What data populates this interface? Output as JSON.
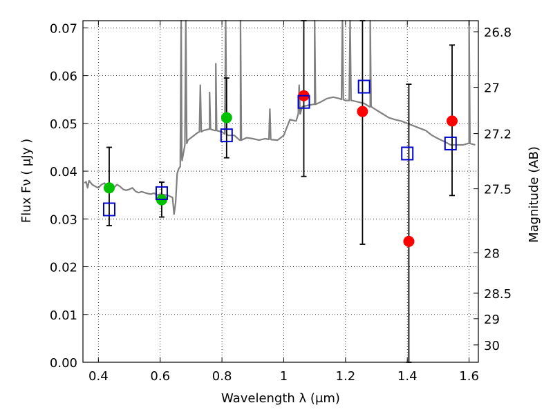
{
  "chart_data": {
    "type": "scatter",
    "xlabel": "Wavelength  λ (μm)",
    "ylabel": "Flux  Fν  ( μJy )",
    "y2label": "Magnitude (AB)",
    "xlim": [
      0.35,
      1.63
    ],
    "ylim": [
      0.0,
      0.0715
    ],
    "grid": true,
    "x_ticks": [
      0.4,
      0.6,
      0.8,
      1.0,
      1.2,
      1.4,
      1.6
    ],
    "x_tick_labels": [
      "0.4",
      "0.6",
      "0.8",
      "1",
      "1.2",
      "1.4",
      "1.6"
    ],
    "y_ticks": [
      0.0,
      0.01,
      0.02,
      0.03,
      0.04,
      0.05,
      0.06,
      0.07
    ],
    "y_tick_labels": [
      "0.00",
      "0.01",
      "0.02",
      "0.03",
      "0.04",
      "0.05",
      "0.06",
      "0.07"
    ],
    "y2_ticks": [
      26.8,
      27.0,
      27.2,
      27.5,
      28.0,
      28.5,
      29.0,
      30.0
    ],
    "y2_tick_labels": [
      "26.8",
      "27",
      "27.2",
      "27.5",
      "28",
      "28.5",
      "29",
      "30"
    ],
    "colors": {
      "model": "#808080",
      "optical": "#00c000",
      "infrared": "#ff0000",
      "model_photometry": "#0000cc",
      "errorbar": "#000000"
    },
    "model_spectrum": {
      "x": [
        0.355,
        0.36,
        0.365,
        0.37,
        0.38,
        0.39,
        0.4,
        0.41,
        0.42,
        0.43,
        0.44,
        0.45,
        0.46,
        0.47,
        0.48,
        0.49,
        0.5,
        0.51,
        0.52,
        0.53,
        0.54,
        0.55,
        0.56,
        0.57,
        0.58,
        0.59,
        0.6,
        0.61,
        0.62,
        0.63,
        0.64,
        0.645,
        0.65,
        0.655,
        0.66,
        0.665,
        0.67,
        0.68,
        0.69,
        0.7,
        0.72,
        0.74,
        0.76,
        0.78,
        0.8,
        0.82,
        0.84,
        0.86,
        0.88,
        0.9,
        0.92,
        0.94,
        0.96,
        0.98,
        1.0,
        1.02,
        1.04,
        1.06,
        1.08,
        1.1,
        1.12,
        1.14,
        1.16,
        1.18,
        1.2,
        1.22,
        1.24,
        1.26,
        1.28,
        1.3,
        1.32,
        1.34,
        1.36,
        1.38,
        1.4,
        1.42,
        1.44,
        1.46,
        1.48,
        1.5,
        1.52,
        1.54,
        1.56,
        1.58,
        1.6,
        1.62
      ],
      "y": [
        0.0375,
        0.0378,
        0.0365,
        0.038,
        0.0372,
        0.0368,
        0.0365,
        0.0372,
        0.0375,
        0.0362,
        0.0368,
        0.0365,
        0.0372,
        0.0368,
        0.0362,
        0.036,
        0.0362,
        0.0365,
        0.0358,
        0.0355,
        0.0357,
        0.0355,
        0.0353,
        0.0352,
        0.0354,
        0.035,
        0.0352,
        0.0351,
        0.035,
        0.0348,
        0.0345,
        0.031,
        0.0335,
        0.0395,
        0.0405,
        0.041,
        0.043,
        0.0455,
        0.0465,
        0.047,
        0.048,
        0.0485,
        0.0488,
        0.0485,
        0.0482,
        0.0475,
        0.0475,
        0.0465,
        0.047,
        0.0468,
        0.0465,
        0.0468,
        0.0466,
        0.0465,
        0.0475,
        0.0508,
        0.0505,
        0.0535,
        0.0538,
        0.054,
        0.0545,
        0.0552,
        0.0555,
        0.0552,
        0.0548,
        0.0548,
        0.0545,
        0.0542,
        0.0535,
        0.0528,
        0.052,
        0.0512,
        0.0508,
        0.0505,
        0.05,
        0.0495,
        0.049,
        0.0485,
        0.0475,
        0.0468,
        0.0462,
        0.0455,
        0.0455,
        0.0455,
        0.0458,
        0.0455
      ]
    },
    "model_spikes": [
      {
        "x": 0.668,
        "peak": 0.0715
      },
      {
        "x": 0.683,
        "peak": 0.0715
      },
      {
        "x": 0.73,
        "peak": 0.058
      },
      {
        "x": 0.76,
        "peak": 0.0565
      },
      {
        "x": 0.78,
        "peak": 0.0625
      },
      {
        "x": 0.812,
        "peak": 0.0715
      },
      {
        "x": 0.86,
        "peak": 0.0715
      },
      {
        "x": 0.955,
        "peak": 0.053
      },
      {
        "x": 1.05,
        "peak": 0.058
      },
      {
        "x": 1.1,
        "peak": 0.0715
      },
      {
        "x": 1.19,
        "peak": 0.0715
      },
      {
        "x": 1.215,
        "peak": 0.0715
      },
      {
        "x": 1.28,
        "peak": 0.0715
      },
      {
        "x": 1.6,
        "peak": 0.0715
      }
    ],
    "series": [
      {
        "color": "#00c000",
        "marker": "circle",
        "x": [
          0.435,
          0.605,
          0.815
        ],
        "values": [
          0.0365,
          0.034,
          0.0512
        ],
        "err_low": [
          0.0286,
          0.0304,
          0.0428
        ],
        "err_high": [
          0.045,
          0.0377,
          0.0595
        ]
      },
      {
        "color": "#ff0000",
        "marker": "circle",
        "x": [
          1.065,
          1.255,
          1.405,
          1.545
        ],
        "values": [
          0.0558,
          0.0525,
          0.0253,
          0.0505
        ],
        "err_low": [
          0.0389,
          0.0247,
          0.0,
          0.0349
        ],
        "err_high": [
          0.0715,
          0.0715,
          0.0582,
          0.0664
        ]
      },
      {
        "color": "#0000cc",
        "marker": "square",
        "x": [
          0.435,
          0.605,
          0.815,
          1.065,
          1.26,
          1.4,
          1.54
        ],
        "values": [
          0.032,
          0.0354,
          0.0475,
          0.0545,
          0.0577,
          0.0437,
          0.0458
        ]
      }
    ]
  }
}
